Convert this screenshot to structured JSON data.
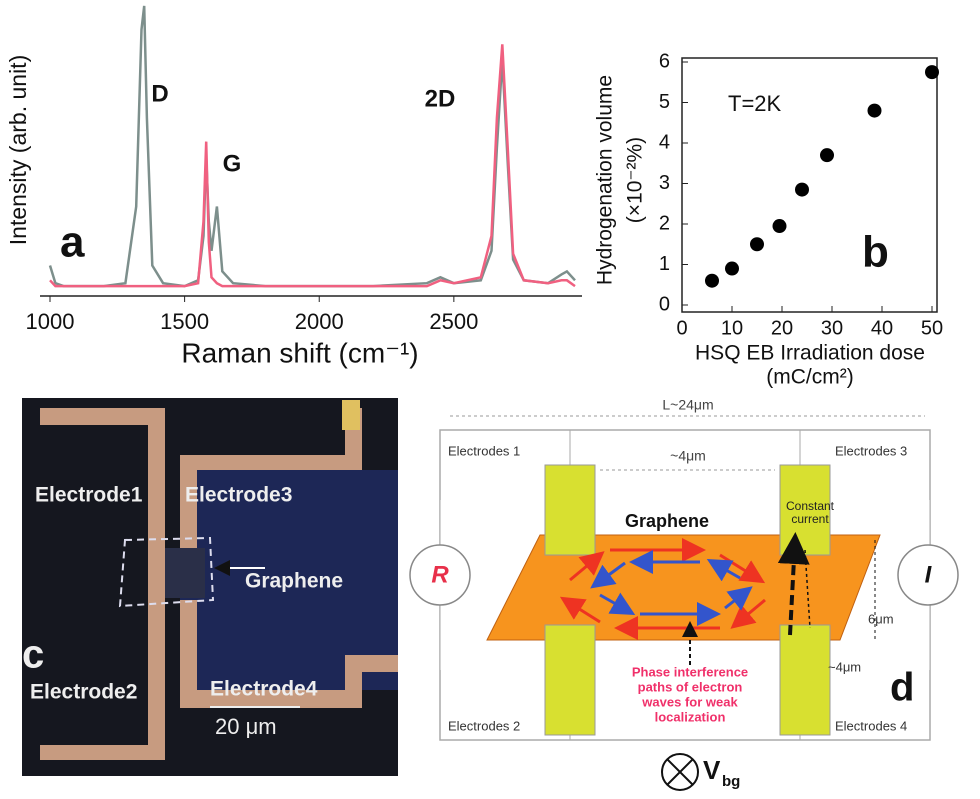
{
  "chart_data": [
    {
      "type": "line",
      "panel": "a",
      "ylabel": "Intensity (arb. unit)",
      "xlabel": "Raman shift (cm⁻¹)",
      "annotations": [
        "D",
        "G",
        "2D"
      ],
      "x": [
        1000,
        1020,
        1050,
        1100,
        1200,
        1280,
        1320,
        1340,
        1350,
        1360,
        1380,
        1420,
        1500,
        1550,
        1570,
        1580,
        1590,
        1600,
        1620,
        1640,
        1680,
        1800,
        2000,
        2200,
        2400,
        2450,
        2500,
        2600,
        2640,
        2660,
        2680,
        2700,
        2720,
        2760,
        2850,
        2900,
        2920,
        2950
      ],
      "series": [
        {
          "color": "#7d8f8c",
          "values": [
            10,
            4,
            3,
            3,
            3,
            4,
            30,
            90,
            98,
            60,
            10,
            4,
            3,
            5,
            20,
            47,
            25,
            15,
            30,
            8,
            4,
            3,
            3,
            3,
            4,
            6,
            4,
            5,
            15,
            50,
            80,
            45,
            12,
            5,
            4,
            7,
            8,
            5
          ]
        },
        {
          "color": "#f06080",
          "values": [
            5,
            3,
            3,
            3,
            3,
            3,
            3,
            3,
            3,
            3,
            3,
            3,
            3,
            4,
            25,
            52,
            18,
            6,
            4,
            3,
            3,
            3,
            3,
            3,
            3,
            5,
            4,
            6,
            20,
            60,
            85,
            50,
            14,
            5,
            4,
            5,
            5,
            3
          ]
        }
      ],
      "xlim": [
        1000,
        2950
      ],
      "xticks": [
        1000,
        1500,
        2000,
        2500
      ],
      "ylim": [
        0,
        100
      ]
    },
    {
      "type": "scatter",
      "panel": "b",
      "ylabel": [
        "Hydrogenation volume",
        "(×10⁻²%)"
      ],
      "xlabel": [
        "HSQ EB Irradiation dose",
        "(mC/cm²)"
      ],
      "annotation": "T=2K",
      "color": "#000000",
      "x": [
        6,
        10,
        15,
        19.5,
        24,
        29,
        38.5,
        50
      ],
      "values": [
        0.6,
        0.9,
        1.5,
        1.95,
        2.85,
        3.7,
        4.8,
        5.75
      ],
      "xlim": [
        0,
        50
      ],
      "xticks": [
        0,
        10,
        20,
        30,
        40,
        50
      ],
      "ylim": [
        0,
        6
      ],
      "yticks": [
        0,
        1,
        2,
        3,
        4,
        5,
        6
      ]
    }
  ],
  "micrograph": {
    "panel": "c",
    "labels": [
      "Electrode1",
      "Electrode3",
      "Graphene",
      "Electrode2",
      "Electrode4"
    ],
    "scale_bar": "20 μm"
  },
  "diagram": {
    "panel": "d",
    "length": "L~24μm",
    "gap": "~4μm",
    "electrodes": [
      "Electrodes 1",
      "Electrodes 3",
      "Electrodes 2",
      "Electrodes 4"
    ],
    "graphene": "Graphene",
    "constant_current": [
      "Constant",
      "current"
    ],
    "resistor": "R",
    "current": "I",
    "height": "6μm",
    "width": "~4μm",
    "caption": [
      "Phase interference",
      "paths of electron",
      "waves for weak",
      "localization"
    ],
    "gate": "V",
    "gate_sub": "bg"
  }
}
